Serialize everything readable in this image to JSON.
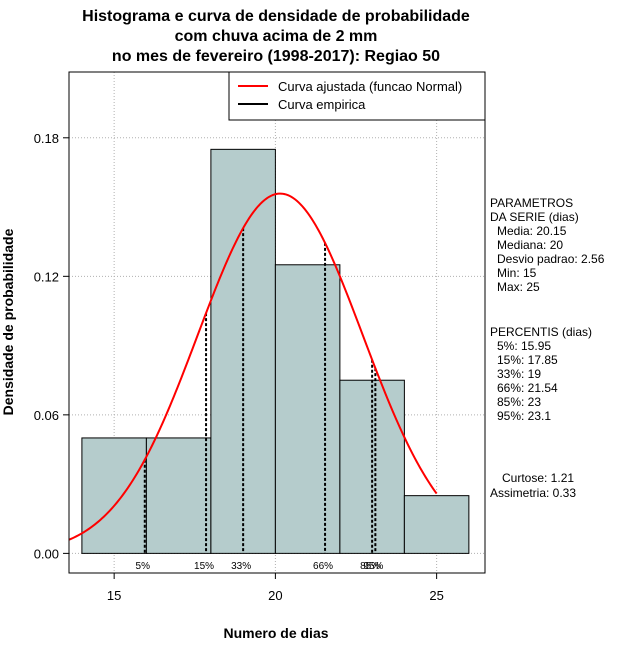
{
  "chart_data": {
    "type": "bar",
    "title": [
      "Histograma e curva de densidade de probabilidade",
      "com chuva acima de 2 mm",
      "no mes de fevereiro (1998-2017): Regiao 50"
    ],
    "xlabel": "Numero de dias",
    "ylabel": "Densidade de probabilidade",
    "xlim": [
      13.6,
      26.5
    ],
    "ylim": [
      -0.0085,
      0.2085
    ],
    "xticks": [
      15,
      20,
      25
    ],
    "yticks": [
      0.0,
      0.06,
      0.12,
      0.18
    ],
    "ytick_labels": [
      "0.00",
      "0.06",
      "0.12",
      "0.18"
    ],
    "grid": true,
    "bins": [
      {
        "x0": 14,
        "x1": 16,
        "density": 0.05
      },
      {
        "x0": 16,
        "x1": 18,
        "density": 0.05
      },
      {
        "x0": 18,
        "x1": 20,
        "density": 0.175
      },
      {
        "x0": 20,
        "x1": 22,
        "density": 0.125
      },
      {
        "x0": 22,
        "x1": 24,
        "density": 0.075
      },
      {
        "x0": 24,
        "x1": 26,
        "density": 0.025
      }
    ],
    "bar_color": "#b5cccc",
    "normal_curve": {
      "mean": 20.15,
      "sd": 2.56,
      "x_from": 13.6,
      "x_to": 25,
      "color": "#ff0000"
    },
    "percentile_lines": [
      {
        "label": "5%",
        "x": 15.95
      },
      {
        "label": "15%",
        "x": 17.85
      },
      {
        "label": "33%",
        "x": 19
      },
      {
        "label": "66%",
        "x": 21.54
      },
      {
        "label": "85%",
        "x": 23
      },
      {
        "label": "95%",
        "x": 23.1
      }
    ],
    "legend": {
      "position": "top-right",
      "entries": [
        {
          "label": "Curva ajustada (funcao Normal)",
          "color": "#ff0000"
        },
        {
          "label": "Curva empirica",
          "color": "#000000"
        }
      ]
    }
  },
  "stats_panel": {
    "param_title": [
      "PARAMETROS",
      "DA SERIE (dias)"
    ],
    "params": [
      "Media: 20.15",
      "Mediana: 20",
      "Desvio padrao: 2.56",
      "Min: 15",
      "Max: 25"
    ],
    "pct_title": "PERCENTIS (dias)",
    "percentis": [
      "5%: 15.95",
      "15%: 17.85",
      "33%: 19",
      "66%: 21.54",
      "85%: 23",
      "95%: 23.1"
    ],
    "curtose": "Curtose: 1.21",
    "assimetria": "Assimetria: 0.33"
  }
}
